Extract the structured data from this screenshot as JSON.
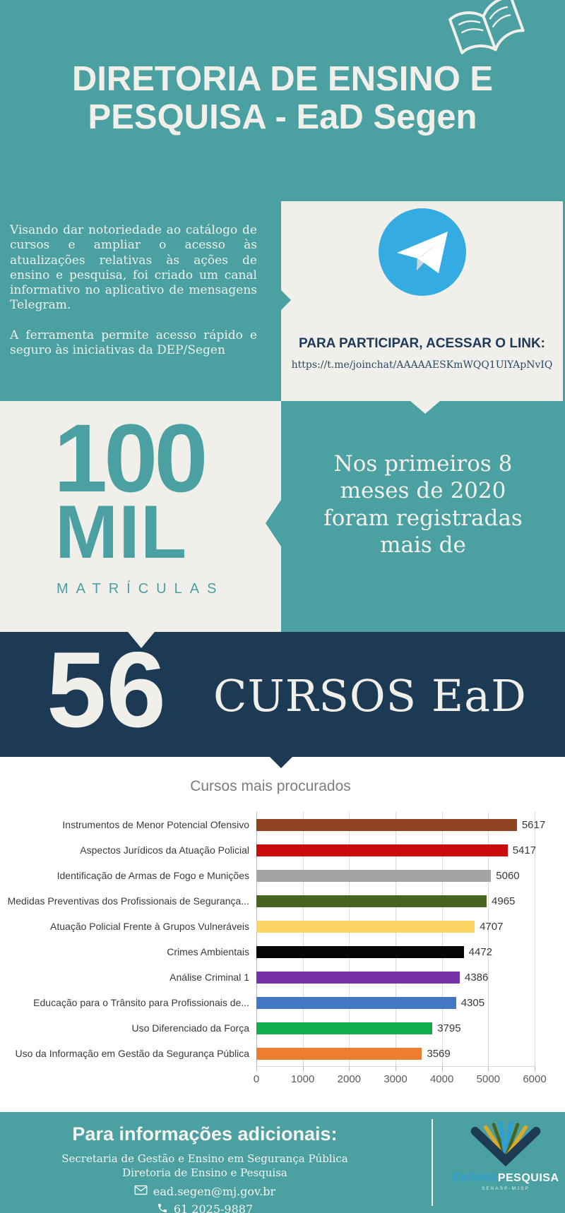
{
  "colors": {
    "teal": "#4ba0a1",
    "navy": "#1d3a55",
    "light": "#f0efe9",
    "telegram_blue": "#35ace1",
    "logo_blue": "#2e9fd0"
  },
  "header": {
    "title_line1": "DIRETORIA DE ENSINO E",
    "title_line2": "PESQUISA - EaD Segen"
  },
  "intro": {
    "paragraph1": "Visando dar notoriedade ao catálogo de cursos e ampliar o acesso às atualizações relativas às ações de ensino e pesquisa, foi criado um canal informativo no aplicativo de mensagens Telegram.",
    "paragraph2": "A ferramenta permite acesso rápido e seguro às iniciativas da DEP/Segen"
  },
  "telegram": {
    "heading": "PARA PARTICIPAR, ACESSAR O LINK:",
    "link": "https://t.me/joinchat/AAAAAESKmWQQ1UlYApNvIQ"
  },
  "stats": {
    "big_number": "100",
    "big_unit": "MIL",
    "caption": "MATRÍCULAS",
    "context": "Nos primeiros 8 meses de 2020 foram registradas mais de",
    "courses_number": "56",
    "courses_label": "CURSOS EaD"
  },
  "chart_data": {
    "type": "bar",
    "orientation": "horizontal",
    "title": "Cursos mais procurados",
    "categories": [
      "Instrumentos de Menor Potencial Ofensivo",
      "Aspectos Jurídicos da Atuação Policial",
      "Identificação de Armas de Fogo e Munições",
      "Medidas Preventivas dos Profissionais de Segurança...",
      "Atuação Policial Frente à Grupos Vulneráveis",
      "Crimes Ambientais",
      "Análise Criminal 1",
      "Educação para o Trânsito para Profissionais de...",
      "Uso Diferenciado da Força",
      "Uso da Informação em Gestão da Segurança Pública"
    ],
    "values": [
      5617,
      5417,
      5060,
      4965,
      4707,
      4472,
      4386,
      4305,
      3795,
      3569
    ],
    "colors": [
      "#8e4420",
      "#c90b0b",
      "#a3a3a3",
      "#47651f",
      "#fbd463",
      "#060606",
      "#7733a6",
      "#4377c4",
      "#12ad4b",
      "#ec7d31"
    ],
    "xlabel": "",
    "ylabel": "",
    "xlim": [
      0,
      6000
    ],
    "x_ticks": [
      0,
      1000,
      2000,
      3000,
      4000,
      5000,
      6000
    ],
    "grid": true,
    "value_labels": true,
    "legend": false
  },
  "footer": {
    "heading": "Para informações adicionais:",
    "org_line1": "Secretaria de Gestão e Ensino em Segurança Pública",
    "org_line2": "Diretoria de Ensino e Pesquisa",
    "email": "ead.segen@mj.gov.br",
    "phone": "61 2025-9887",
    "logo_ensino": "ENSINO",
    "logo_pesquisa": "PESQUISA",
    "logo_subtext": "SENASP-MJSP"
  }
}
